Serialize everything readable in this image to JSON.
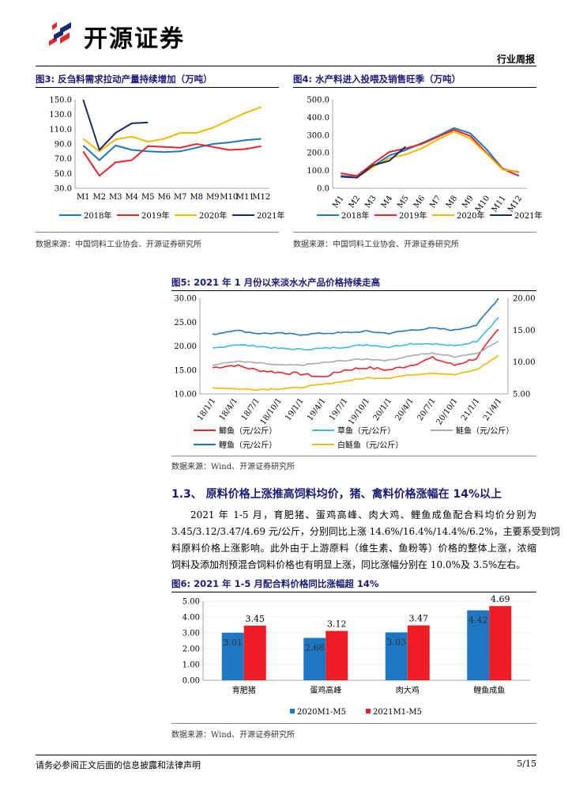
{
  "header": {
    "logo_text": "开源证券",
    "section_label": "行业周报"
  },
  "fig3": {
    "title": "图3: 反刍料需求拉动产量持续增加（万吨）",
    "source": "数据来源：中国饲料工业协会、开源证券研究所",
    "chart_data": {
      "type": "line",
      "categories": [
        "M1",
        "M2",
        "M3",
        "M4",
        "M5",
        "M6",
        "M7",
        "M8",
        "M9",
        "M10",
        "M11",
        "M12"
      ],
      "ylim": [
        30,
        150
      ],
      "yticks": [
        "30.0",
        "50.0",
        "70.0",
        "90.0",
        "110.0",
        "130.0",
        "150.0"
      ],
      "series": [
        {
          "name": "2018年",
          "color": "#1f77c4",
          "values": [
            88,
            68,
            88,
            82,
            80,
            79,
            80,
            85,
            90,
            92,
            95,
            97
          ]
        },
        {
          "name": "2019年",
          "color": "#e8252a",
          "values": [
            80,
            47,
            65,
            68,
            87,
            86,
            85,
            90,
            86,
            82,
            83,
            87
          ]
        },
        {
          "name": "2020年",
          "color": "#f5b800",
          "values": [
            97,
            80,
            96,
            100,
            93,
            97,
            105,
            105,
            112,
            122,
            132,
            140
          ]
        },
        {
          "name": "2021年",
          "color": "#1a2a6c",
          "values": [
            150,
            82,
            105,
            118,
            119,
            null,
            null,
            null,
            null,
            null,
            null,
            null
          ]
        }
      ]
    }
  },
  "fig4": {
    "title": "图4: 水产料进入投喂及销售旺季（万吨）",
    "source": "数据来源：中国饲料工业协会、开源证券研究所",
    "chart_data": {
      "type": "line",
      "categories": [
        "M1",
        "M2",
        "M3",
        "M4",
        "M5",
        "M6",
        "M7",
        "M8",
        "M9",
        "M10",
        "M11",
        "M12"
      ],
      "ylim": [
        0,
        500
      ],
      "yticks": [
        "0.0",
        "100.0",
        "200.0",
        "300.0",
        "400.0",
        "500.0"
      ],
      "series": [
        {
          "name": "2018年",
          "color": "#1f77c4",
          "values": [
            70,
            65,
            125,
            185,
            215,
            255,
            295,
            340,
            310,
            220,
            110,
            90
          ]
        },
        {
          "name": "2019年",
          "color": "#e8252a",
          "values": [
            85,
            70,
            140,
            205,
            225,
            250,
            290,
            330,
            295,
            200,
            110,
            70
          ]
        },
        {
          "name": "2020年",
          "color": "#f5b800",
          "values": [
            65,
            62,
            120,
            170,
            190,
            225,
            275,
            320,
            280,
            195,
            105,
            95
          ]
        },
        {
          "name": "2021年",
          "color": "#1a2a6c",
          "values": [
            65,
            60,
            130,
            155,
            235,
            null,
            null,
            null,
            null,
            null,
            null,
            null
          ]
        }
      ]
    }
  },
  "fig5": {
    "title": "图5: 2021 年 1 月份以来淡水水产品价格持续走高",
    "source": "数据来源：Wind、开源证券研究所",
    "chart_data": {
      "type": "line",
      "x": [
        "18/1/1",
        "18/4/1",
        "18/7/1",
        "18/10/1",
        "19/1/1",
        "19/4/1",
        "19/7/1",
        "19/10/1",
        "20/1/1",
        "20/4/1",
        "20/7/1",
        "20/10/1",
        "21/1/1",
        "21/4/1"
      ],
      "ylim_left": [
        10,
        30
      ],
      "ylim_right": [
        5,
        20
      ],
      "yticks_left": [
        "10.00",
        "15.00",
        "20.00",
        "25.00",
        "30.00"
      ],
      "yticks_right": [
        "5.00",
        "10.00",
        "15.00",
        "20.00"
      ],
      "series": [
        {
          "name": "鲫鱼（元/公斤）",
          "color": "#e8252a",
          "axis": "left",
          "values": [
            15.5,
            16.0,
            15.0,
            14.5,
            14.2,
            13.5,
            15.0,
            15.5,
            15.0,
            16.0,
            17.5,
            16.0,
            17.5,
            23.5
          ]
        },
        {
          "name": "草鱼（元/公斤）",
          "color": "#3fb7e6",
          "axis": "left",
          "values": [
            19.5,
            20.3,
            20.0,
            19.5,
            19.3,
            19.5,
            19.8,
            20.3,
            19.8,
            20.5,
            20.5,
            20.0,
            21.0,
            26.0
          ]
        },
        {
          "name": "鲢鱼（元/公斤）",
          "color": "#aaaaaa",
          "axis": "left",
          "values": [
            16.0,
            16.8,
            16.5,
            16.0,
            16.0,
            16.5,
            17.0,
            17.3,
            17.0,
            18.0,
            18.5,
            17.8,
            18.5,
            21.0
          ]
        },
        {
          "name": "鲤鱼（元/公斤）",
          "color": "#1f77c4",
          "axis": "right",
          "values": [
            14.3,
            15.0,
            14.5,
            14.5,
            14.3,
            14.5,
            14.6,
            14.8,
            14.5,
            15.0,
            15.3,
            15.0,
            15.8,
            20.0
          ]
        },
        {
          "name": "白鲢鱼（元/公斤）",
          "color": "#f5b800",
          "axis": "right",
          "values": [
            6.0,
            5.8,
            5.7,
            5.8,
            6.0,
            6.5,
            7.0,
            7.5,
            7.5,
            8.0,
            8.3,
            8.0,
            8.8,
            11.0
          ]
        }
      ]
    }
  },
  "section": {
    "heading": "1.3、 原料价格上涨推高饲料均价，猪、禽料价格涨幅在 14%以上",
    "paragraph_lines": [
      "2021 年 1-5 月，育肥猪、蛋鸡高峰、肉大鸡、鲤鱼成鱼配合料均价分别为",
      "3.45/3.12/3.47/4.69 元/公斤，分别同比上涨 14.6%/16.4%/14.4%/6.2%，主要系受到饲",
      "料原料价格上涨影响。此外由于上游原料（维生素、鱼粉等）价格的整体上涨，浓缩",
      "饲料及添加剂预混合饲料价格也有明显上涨，同比涨幅分别在 10.0%及 3.5%左右。"
    ]
  },
  "fig6": {
    "title": "图6: 2021 年 1-5 月配合料价格同比涨幅超 14%",
    "source": "数据来源：Wind、开源证券研究所",
    "chart_data": {
      "type": "bar",
      "categories": [
        "育肥猪",
        "蛋鸡高峰",
        "肉大鸡",
        "鲤鱼成鱼"
      ],
      "ylim": [
        0,
        5
      ],
      "yticks": [
        "0.00",
        "0.50",
        "1.00",
        "1.50",
        "2.00",
        "2.50",
        "3.00",
        "3.50",
        "4.00",
        "4.50",
        "5.00"
      ],
      "series": [
        {
          "name": "2020M1-M5",
          "color": "#1f77c4",
          "values": [
            3.01,
            2.68,
            3.03,
            4.42
          ],
          "labels": [
            "3.01",
            "2.68",
            "3.03",
            "4.42"
          ]
        },
        {
          "name": "2021M1-M5",
          "color": "#ee1c25",
          "values": [
            3.45,
            3.12,
            3.47,
            4.69
          ],
          "labels": [
            "3.45",
            "3.12",
            "3.47",
            "4.69"
          ]
        }
      ]
    }
  },
  "footer": {
    "disclaimer": "请务必参阅正文后面的信息披露和法律声明",
    "page": "5/15"
  }
}
